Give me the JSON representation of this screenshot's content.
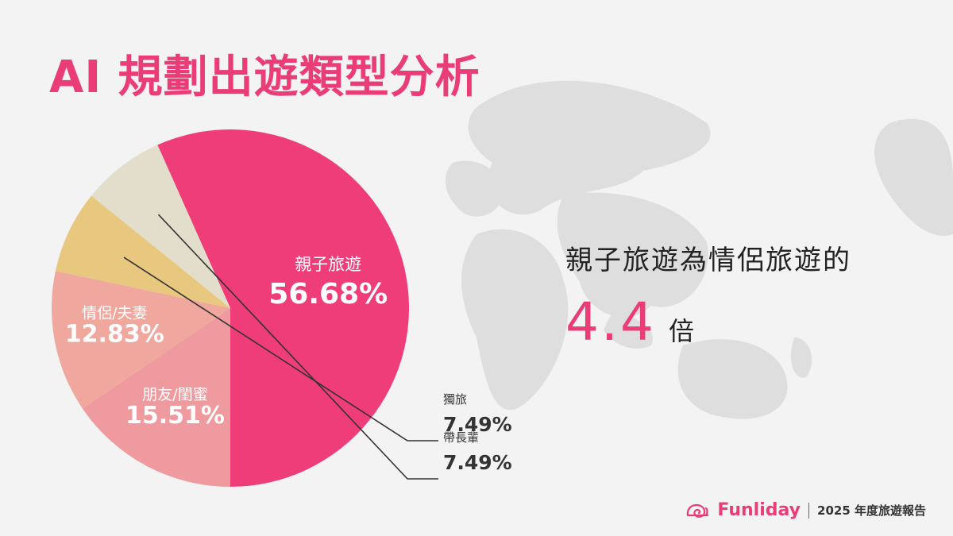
{
  "title": "AI 規劃出遊類型分析",
  "colors": {
    "accent": "#ea3d78",
    "map": "#dedede",
    "slices": [
      "#ef3d79",
      "#ef9a9e",
      "#f0a79d",
      "#e8c77e",
      "#e2decb"
    ]
  },
  "chart_data": {
    "type": "pie",
    "slices": [
      {
        "label": "親子旅遊",
        "display": "56.68%",
        "value": 56.68
      },
      {
        "label": "朋友/閨蜜",
        "display": "15.51%",
        "value": 15.51
      },
      {
        "label": "情侶/夫妻",
        "display": "12.83%",
        "value": 12.83
      },
      {
        "label": "獨旅",
        "display": "7.49%",
        "value": 7.49
      },
      {
        "label": "帶長輩",
        "display": "7.49%",
        "value": 7.49
      }
    ]
  },
  "highlight": {
    "line1": "親子旅遊為情侶旅遊的",
    "ratio_value": "4.4",
    "ratio_unit": "倍"
  },
  "footer": {
    "brand": "Funliday",
    "brand_icon": "snail-icon",
    "report_title": "2025 年度旅遊報告"
  }
}
